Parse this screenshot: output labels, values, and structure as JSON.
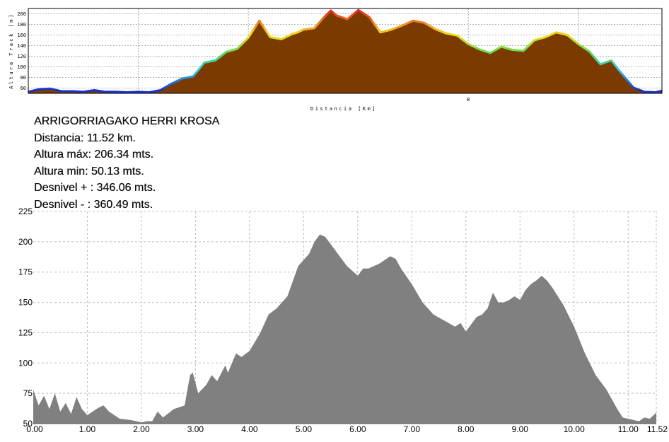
{
  "info": {
    "title": "ARRIGORRIAGAKO HERRI KROSA",
    "distance": "Distancia: 11.52 km.",
    "max_altitude": "Altura máx: 206.34 mts.",
    "min_altitude": "Altura min: 50.13 mts.",
    "gain": "Desnivel + :  346.06 mts.",
    "loss": "Desnivel - : 360.49 mts."
  },
  "colors": {
    "top_fill": "#7a3a00",
    "top_grid": "#999999",
    "bottom_fill": "#808080",
    "bottom_grid": "#bdbdbd",
    "gradient": [
      "#1a2fc8",
      "#33c8e8",
      "#55d855",
      "#f0e020",
      "#f09020",
      "#e02020"
    ]
  },
  "chart_data": [
    {
      "type": "area",
      "xlabel": "Distancia [Km]",
      "ylabel": "Altura Track [m]",
      "xlim": [
        0,
        11.52
      ],
      "ylim": [
        50,
        210
      ],
      "yticks": [
        "200",
        "180",
        "160",
        "140",
        "120",
        "100",
        "80",
        "60"
      ],
      "xticks": [
        {
          "value": 8,
          "label": "8"
        }
      ],
      "grid": true,
      "x": [
        0,
        0.2,
        0.4,
        0.6,
        0.8,
        1.0,
        1.2,
        1.4,
        1.6,
        1.8,
        2.0,
        2.2,
        2.4,
        2.6,
        2.8,
        2.9,
        3.0,
        3.2,
        3.4,
        3.6,
        3.8,
        4.0,
        4.2,
        4.4,
        4.6,
        4.8,
        4.9,
        5.0,
        5.2,
        5.4,
        5.5,
        5.6,
        5.8,
        6.0,
        6.2,
        6.4,
        6.6,
        6.8,
        7.0,
        7.2,
        7.4,
        7.6,
        7.8,
        8.0,
        8.2,
        8.4,
        8.6,
        8.8,
        9.0,
        9.2,
        9.4,
        9.6,
        9.8,
        10.0,
        10.2,
        10.4,
        10.6,
        10.8,
        11.0,
        11.2,
        11.4,
        11.52
      ],
      "y": [
        53,
        58,
        59,
        54,
        54,
        53,
        56,
        53,
        53,
        52,
        53,
        52,
        56,
        68,
        78,
        80,
        82,
        108,
        112,
        128,
        134,
        155,
        187,
        156,
        152,
        162,
        165,
        170,
        173,
        196,
        206,
        197,
        190,
        207,
        194,
        165,
        170,
        178,
        187,
        183,
        171,
        163,
        159,
        143,
        133,
        126,
        138,
        132,
        130,
        150,
        156,
        165,
        160,
        143,
        129,
        105,
        112,
        86,
        61,
        53,
        52,
        55
      ]
    },
    {
      "type": "area",
      "xlabel": "",
      "ylabel": "",
      "xlim": [
        0,
        11.52
      ],
      "ylim": [
        50,
        225
      ],
      "xticks": [
        "0.00",
        "1.00",
        "2.00",
        "3.00",
        "4.00",
        "5.00",
        "6.00",
        "7.00",
        "8.00",
        "9.00",
        "10.00",
        "11.00",
        "11.52"
      ],
      "yticks": [
        "50",
        "75",
        "100",
        "125",
        "150",
        "175",
        "200",
        "225"
      ],
      "grid": true,
      "x": [
        0,
        0.1,
        0.2,
        0.3,
        0.4,
        0.5,
        0.6,
        0.7,
        0.8,
        0.9,
        1.0,
        1.1,
        1.2,
        1.3,
        1.4,
        1.5,
        1.6,
        1.8,
        2.0,
        2.1,
        2.2,
        2.3,
        2.4,
        2.6,
        2.8,
        2.9,
        2.95,
        3.05,
        3.2,
        3.3,
        3.4,
        3.55,
        3.6,
        3.75,
        3.85,
        4.0,
        4.2,
        4.35,
        4.5,
        4.7,
        4.9,
        5.1,
        5.2,
        5.3,
        5.4,
        5.5,
        5.6,
        5.8,
        6.0,
        6.1,
        6.2,
        6.4,
        6.6,
        6.7,
        6.8,
        7.0,
        7.2,
        7.4,
        7.6,
        7.8,
        7.9,
        8.0,
        8.2,
        8.3,
        8.4,
        8.5,
        8.6,
        8.7,
        8.8,
        8.9,
        9.0,
        9.1,
        9.2,
        9.3,
        9.4,
        9.5,
        9.6,
        9.8,
        10.0,
        10.2,
        10.4,
        10.6,
        10.7,
        10.8,
        10.9,
        11.0,
        11.1,
        11.2,
        11.3,
        11.4,
        11.52
      ],
      "y": [
        78,
        65,
        73,
        62,
        75,
        60,
        67,
        58,
        72,
        62,
        57,
        60,
        63,
        65,
        60,
        57,
        54,
        53,
        51,
        52,
        52,
        60,
        55,
        62,
        65,
        90,
        92,
        75,
        82,
        90,
        85,
        98,
        92,
        108,
        105,
        110,
        125,
        140,
        145,
        155,
        180,
        190,
        200,
        206,
        204,
        198,
        192,
        180,
        172,
        178,
        178,
        182,
        188,
        186,
        178,
        165,
        150,
        140,
        135,
        130,
        133,
        126,
        138,
        140,
        145,
        158,
        150,
        150,
        152,
        155,
        152,
        160,
        165,
        168,
        172,
        168,
        162,
        148,
        130,
        108,
        90,
        78,
        70,
        62,
        55,
        54,
        53,
        52,
        55,
        54,
        59
      ]
    }
  ]
}
